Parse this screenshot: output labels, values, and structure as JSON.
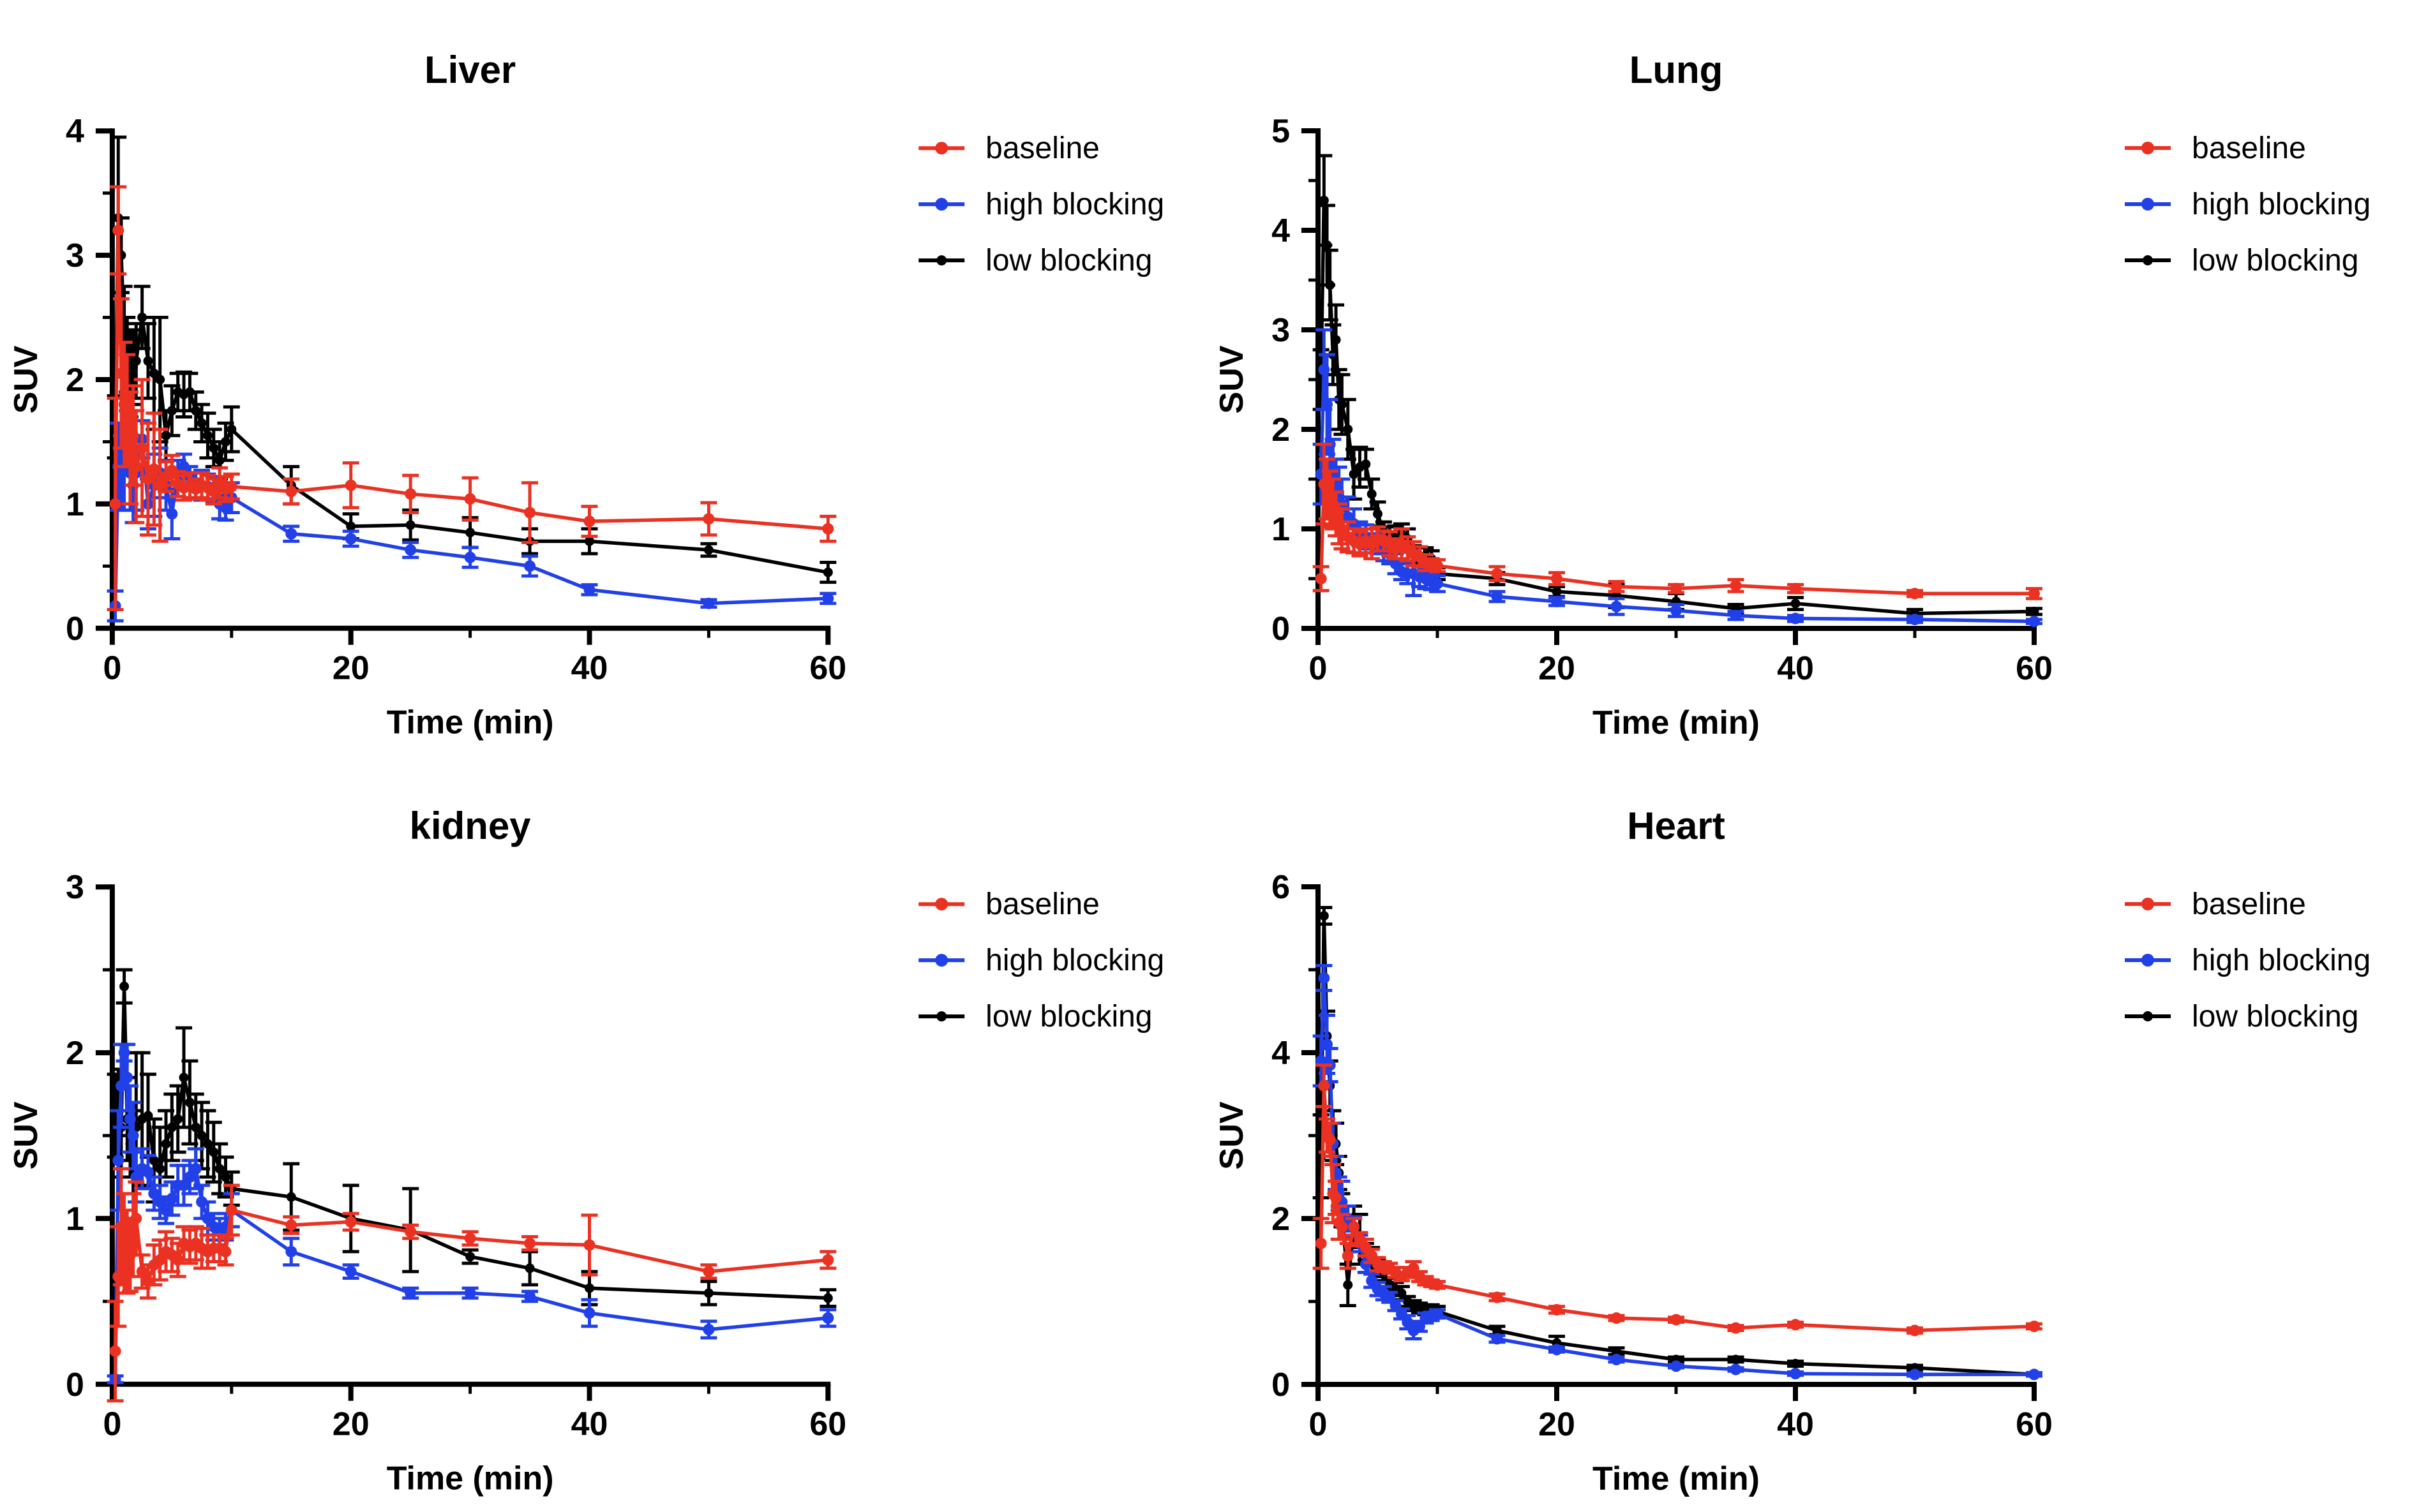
{
  "figure": {
    "background": "#ffffff",
    "xlabel": "Time (min)",
    "ylabel": "SUV",
    "legend_labels": [
      "baseline",
      "high blocking",
      "low blocking"
    ],
    "colors": {
      "baseline": "#EA3122",
      "high_blocking": "#2140E8",
      "low_blocking": "#000000"
    }
  },
  "chart_data": [
    {
      "type": "line",
      "title": "Liver",
      "xlabel": "Time (min)",
      "ylabel": "SUV",
      "xlim": [
        0,
        60
      ],
      "ylim": [
        0,
        4
      ],
      "xticks": [
        0,
        20,
        40,
        60
      ],
      "xminor": [
        10,
        30,
        50
      ],
      "yticks": [
        0,
        1,
        2,
        3,
        4
      ],
      "yminor_step": 0.5,
      "grid": false,
      "legend_position": "right",
      "x": [
        0.25,
        0.5,
        0.75,
        1,
        1.25,
        1.5,
        1.75,
        2,
        2.5,
        3,
        3.5,
        4,
        4.5,
        5,
        5.5,
        6,
        6.5,
        7,
        7.5,
        8,
        8.5,
        9,
        9.5,
        10,
        15,
        20,
        25,
        30,
        35,
        40,
        50,
        60
      ],
      "series": [
        {
          "name": "baseline",
          "color": "#EA3122",
          "values": [
            1.0,
            3.2,
            2.05,
            1.8,
            1.75,
            1.45,
            1.55,
            1.3,
            1.45,
            1.2,
            1.28,
            1.15,
            1.22,
            1.27,
            1.16,
            1.13,
            1.15,
            1.12,
            1.15,
            1.13,
            1.1,
            1.17,
            1.12,
            1.14,
            1.1,
            1.15,
            1.08,
            1.04,
            0.93,
            0.86,
            0.88,
            0.8
          ],
          "errors": [
            0.85,
            0.35,
            0.6,
            0.5,
            0.45,
            0.45,
            0.4,
            0.45,
            0.55,
            0.45,
            0.45,
            0.45,
            0.12,
            0.12,
            0.1,
            0.1,
            0.1,
            0.08,
            0.1,
            0.1,
            0.1,
            0.12,
            0.1,
            0.1,
            0.1,
            0.18,
            0.15,
            0.17,
            0.24,
            0.12,
            0.13,
            0.1
          ]
        },
        {
          "name": "high blocking",
          "color": "#2140E8",
          "values": [
            0.18,
            1.3,
            1.25,
            1.3,
            1.5,
            1.25,
            1.15,
            1.25,
            1.52,
            1.0,
            1.15,
            1.25,
            1.15,
            0.92,
            1.25,
            1.3,
            1.22,
            1.15,
            1.15,
            1.14,
            1.12,
            1.0,
            0.97,
            1.05,
            0.76,
            0.72,
            0.63,
            0.57,
            0.5,
            0.31,
            0.2,
            0.24
          ],
          "errors": [
            0.12,
            0.35,
            0.3,
            0.35,
            0.25,
            0.3,
            0.3,
            0.3,
            0.15,
            0.2,
            0.25,
            0.2,
            0.2,
            0.2,
            0.1,
            0.1,
            0.08,
            0.1,
            0.12,
            0.1,
            0.1,
            0.12,
            0.1,
            0.12,
            0.06,
            0.06,
            0.06,
            0.08,
            0.08,
            0.04,
            0.03,
            0.04
          ]
        },
        {
          "name": "low blocking",
          "color": "#000000",
          "values": [
            1.62,
            3.3,
            3.0,
            2.4,
            2.2,
            2.05,
            2.1,
            2.15,
            2.5,
            2.15,
            2.05,
            2.0,
            1.55,
            1.75,
            1.9,
            1.88,
            1.9,
            1.75,
            1.65,
            1.55,
            1.45,
            1.35,
            1.5,
            1.6,
            1.15,
            0.82,
            0.83,
            0.77,
            0.7,
            0.7,
            0.63,
            0.45
          ],
          "errors": [
            0.25,
            0.65,
            0.3,
            0.35,
            0.3,
            0.35,
            0.3,
            0.3,
            0.25,
            0.3,
            0.45,
            0.5,
            0.2,
            0.2,
            0.15,
            0.18,
            0.15,
            0.15,
            0.15,
            0.18,
            0.15,
            0.15,
            0.15,
            0.18,
            0.15,
            0.1,
            0.12,
            0.12,
            0.1,
            0.1,
            0.05,
            0.08
          ]
        }
      ]
    },
    {
      "type": "line",
      "title": "Lung",
      "xlabel": "Time (min)",
      "ylabel": "SUV",
      "xlim": [
        0,
        60
      ],
      "ylim": [
        0,
        5
      ],
      "xticks": [
        0,
        20,
        40,
        60
      ],
      "xminor": [
        10,
        30,
        50
      ],
      "yticks": [
        0,
        1,
        2,
        3,
        4,
        5
      ],
      "yminor_step": 0.5,
      "grid": false,
      "legend_position": "right",
      "x": [
        0.25,
        0.5,
        0.75,
        1,
        1.25,
        1.5,
        1.75,
        2,
        2.5,
        3,
        3.5,
        4,
        4.5,
        5,
        5.5,
        6,
        6.5,
        7,
        7.5,
        8,
        8.5,
        9,
        9.5,
        10,
        15,
        20,
        25,
        30,
        35,
        40,
        50,
        60
      ],
      "series": [
        {
          "name": "baseline",
          "color": "#EA3122",
          "values": [
            0.5,
            1.45,
            1.4,
            1.3,
            1.25,
            1.15,
            1.05,
            1.0,
            0.92,
            0.88,
            0.85,
            0.88,
            0.85,
            0.9,
            0.88,
            0.85,
            0.8,
            0.85,
            0.8,
            0.75,
            0.72,
            0.66,
            0.64,
            0.63,
            0.55,
            0.5,
            0.42,
            0.4,
            0.43,
            0.4,
            0.35,
            0.35
          ],
          "errors": [
            0.12,
            0.4,
            0.3,
            0.28,
            0.25,
            0.22,
            0.2,
            0.2,
            0.15,
            0.12,
            0.12,
            0.12,
            0.15,
            0.12,
            0.1,
            0.12,
            0.1,
            0.15,
            0.12,
            0.12,
            0.1,
            0.08,
            0.06,
            0.06,
            0.07,
            0.06,
            0.05,
            0.04,
            0.06,
            0.04,
            0.03,
            0.05
          ]
        },
        {
          "name": "high blocking",
          "color": "#2140E8",
          "values": [
            1.55,
            2.6,
            2.25,
            1.85,
            1.55,
            1.4,
            1.32,
            1.25,
            1.12,
            1.05,
            0.95,
            0.92,
            0.9,
            0.85,
            0.8,
            0.75,
            0.65,
            0.57,
            0.55,
            0.55,
            0.52,
            0.5,
            0.47,
            0.45,
            0.32,
            0.27,
            0.22,
            0.18,
            0.13,
            0.1,
            0.09,
            0.07
          ],
          "errors": [
            0.3,
            0.4,
            0.5,
            0.45,
            0.35,
            0.3,
            0.3,
            0.25,
            0.2,
            0.15,
            0.12,
            0.12,
            0.1,
            0.1,
            0.12,
            0.1,
            0.1,
            0.08,
            0.1,
            0.22,
            0.1,
            0.1,
            0.08,
            0.08,
            0.05,
            0.04,
            0.08,
            0.06,
            0.04,
            0.03,
            0.03,
            0.02
          ]
        },
        {
          "name": "low blocking",
          "color": "#000000",
          "values": [
            2.5,
            4.3,
            3.85,
            3.45,
            2.75,
            2.9,
            2.3,
            2.25,
            2.0,
            1.55,
            1.62,
            1.65,
            1.35,
            1.15,
            0.97,
            0.92,
            0.93,
            0.95,
            0.9,
            0.75,
            0.73,
            0.73,
            0.7,
            0.55,
            0.5,
            0.37,
            0.33,
            0.27,
            0.2,
            0.25,
            0.15,
            0.17
          ],
          "errors": [
            0.3,
            0.45,
            0.4,
            0.35,
            0.3,
            0.35,
            0.3,
            0.3,
            0.3,
            0.25,
            0.2,
            0.15,
            0.15,
            0.12,
            0.1,
            0.1,
            0.1,
            0.1,
            0.1,
            0.08,
            0.08,
            0.08,
            0.08,
            0.06,
            0.06,
            0.05,
            0.12,
            0.08,
            0.04,
            0.06,
            0.04,
            0.03
          ]
        }
      ]
    },
    {
      "type": "line",
      "title": "kidney",
      "xlabel": "Time (min)",
      "ylabel": "SUV",
      "xlim": [
        0,
        60
      ],
      "ylim": [
        0,
        3
      ],
      "xticks": [
        0,
        20,
        40,
        60
      ],
      "xminor": [
        10,
        30,
        50
      ],
      "yticks": [
        0,
        1,
        2,
        3
      ],
      "yminor_step": 0.5,
      "grid": false,
      "legend_position": "right",
      "x": [
        0.25,
        0.5,
        0.75,
        1,
        1.25,
        1.5,
        1.75,
        2,
        2.5,
        3,
        3.5,
        4,
        4.5,
        5,
        5.5,
        6,
        6.5,
        7,
        7.5,
        8,
        8.5,
        9,
        9.5,
        10,
        15,
        20,
        25,
        30,
        35,
        40,
        50,
        60
      ],
      "series": [
        {
          "name": "baseline",
          "color": "#EA3122",
          "values": [
            0.2,
            0.65,
            0.95,
            0.85,
            0.8,
            0.78,
            0.9,
            1.0,
            0.68,
            0.62,
            0.72,
            0.75,
            0.8,
            0.78,
            0.75,
            0.85,
            0.83,
            0.85,
            0.82,
            0.8,
            0.82,
            0.82,
            0.8,
            1.05,
            0.96,
            0.98,
            0.92,
            0.88,
            0.85,
            0.84,
            0.68,
            0.75
          ],
          "errors": [
            0.3,
            0.3,
            0.35,
            0.3,
            0.25,
            0.22,
            0.25,
            0.22,
            0.1,
            0.1,
            0.12,
            0.12,
            0.12,
            0.1,
            0.1,
            0.1,
            0.1,
            0.1,
            0.12,
            0.1,
            0.08,
            0.08,
            0.08,
            0.15,
            0.05,
            0.05,
            0.04,
            0.04,
            0.04,
            0.18,
            0.04,
            0.05
          ]
        },
        {
          "name": "high blocking",
          "color": "#2140E8",
          "values": [
            0.03,
            1.35,
            1.8,
            2.0,
            1.85,
            1.6,
            1.5,
            1.25,
            1.3,
            1.28,
            1.15,
            1.1,
            1.05,
            1.12,
            1.2,
            1.2,
            1.25,
            1.3,
            1.1,
            1.0,
            0.95,
            0.92,
            0.95,
            1.05,
            0.8,
            0.68,
            0.55,
            0.55,
            0.53,
            0.43,
            0.33,
            0.4
          ],
          "errors": [
            0.02,
            0.3,
            0.25,
            0.05,
            0.2,
            0.2,
            0.2,
            0.15,
            0.12,
            0.1,
            0.1,
            0.1,
            0.08,
            0.1,
            0.12,
            0.12,
            0.1,
            0.12,
            0.1,
            0.1,
            0.08,
            0.08,
            0.08,
            0.1,
            0.08,
            0.04,
            0.03,
            0.03,
            0.03,
            0.08,
            0.05,
            0.05
          ]
        },
        {
          "name": "low blocking",
          "color": "#000000",
          "values": [
            1.62,
            1.7,
            1.55,
            2.4,
            1.6,
            1.45,
            1.4,
            1.55,
            1.6,
            1.62,
            1.35,
            1.3,
            1.45,
            1.55,
            1.6,
            1.85,
            1.7,
            1.55,
            1.5,
            1.45,
            1.4,
            1.3,
            1.25,
            1.18,
            1.13,
            1.0,
            0.93,
            0.77,
            0.7,
            0.58,
            0.55,
            0.52
          ],
          "errors": [
            0.25,
            0.2,
            0.3,
            0.1,
            0.25,
            0.2,
            0.25,
            0.45,
            0.4,
            0.25,
            0.25,
            0.25,
            0.2,
            0.2,
            0.2,
            0.3,
            0.25,
            0.2,
            0.2,
            0.2,
            0.18,
            0.15,
            0.12,
            0.1,
            0.2,
            0.2,
            0.25,
            0.04,
            0.1,
            0.1,
            0.07,
            0.05
          ]
        }
      ]
    },
    {
      "type": "line",
      "title": "Heart",
      "xlabel": "Time (min)",
      "ylabel": "SUV",
      "xlim": [
        0,
        60
      ],
      "ylim": [
        0,
        6
      ],
      "xticks": [
        0,
        20,
        40,
        60
      ],
      "xminor": [
        10,
        30,
        50
      ],
      "yticks": [
        0,
        2,
        4,
        6
      ],
      "yminor_step": 1,
      "grid": false,
      "legend_position": "right",
      "x": [
        0.25,
        0.5,
        0.75,
        1,
        1.25,
        1.5,
        1.75,
        2,
        2.5,
        3,
        3.5,
        4,
        4.5,
        5,
        5.5,
        6,
        6.5,
        7,
        7.5,
        8,
        8.5,
        9,
        9.5,
        10,
        15,
        20,
        25,
        30,
        35,
        40,
        50,
        60
      ],
      "series": [
        {
          "name": "baseline",
          "color": "#EA3122",
          "values": [
            1.7,
            3.6,
            3.0,
            2.95,
            2.3,
            2.25,
            1.95,
            1.9,
            1.55,
            1.9,
            1.75,
            1.65,
            1.55,
            1.45,
            1.42,
            1.4,
            1.35,
            1.3,
            1.35,
            1.4,
            1.3,
            1.25,
            1.22,
            1.2,
            1.05,
            0.9,
            0.8,
            0.78,
            0.68,
            0.72,
            0.65,
            0.7
          ],
          "errors": [
            0.3,
            0.25,
            0.2,
            0.2,
            0.35,
            0.2,
            0.2,
            0.15,
            0.15,
            0.1,
            0.08,
            0.1,
            0.08,
            0.08,
            0.06,
            0.06,
            0.06,
            0.05,
            0.06,
            0.08,
            0.06,
            0.05,
            0.04,
            0.04,
            0.04,
            0.04,
            0.03,
            0.03,
            0.03,
            0.03,
            0.03,
            0.03
          ]
        },
        {
          "name": "high blocking",
          "color": "#2140E8",
          "values": [
            3.9,
            4.9,
            4.1,
            3.85,
            2.9,
            2.55,
            2.3,
            2.2,
            2.0,
            1.9,
            1.7,
            1.45,
            1.25,
            1.15,
            1.1,
            1.05,
            0.95,
            0.85,
            0.75,
            0.65,
            0.7,
            0.8,
            0.82,
            0.85,
            0.55,
            0.42,
            0.3,
            0.22,
            0.18,
            0.13,
            0.12,
            0.12
          ],
          "errors": [
            0.3,
            0.15,
            0.35,
            0.2,
            0.25,
            0.2,
            0.2,
            0.25,
            0.15,
            0.12,
            0.1,
            0.1,
            0.08,
            0.08,
            0.08,
            0.06,
            0.06,
            0.06,
            0.08,
            0.1,
            0.06,
            0.06,
            0.05,
            0.05,
            0.04,
            0.03,
            0.03,
            0.02,
            0.02,
            0.02,
            0.02,
            0.02
          ]
        },
        {
          "name": "low blocking",
          "color": "#000000",
          "values": [
            2.75,
            5.65,
            4.2,
            3.6,
            3.0,
            2.9,
            2.55,
            2.1,
            1.2,
            1.9,
            1.75,
            1.6,
            1.5,
            1.4,
            1.35,
            1.2,
            1.15,
            1.1,
            1.0,
            0.95,
            0.92,
            0.9,
            0.9,
            0.88,
            0.65,
            0.5,
            0.4,
            0.3,
            0.3,
            0.25,
            0.2,
            0.12
          ],
          "errors": [
            0.5,
            0.1,
            0.3,
            0.3,
            0.3,
            0.25,
            0.2,
            0.2,
            0.25,
            0.25,
            0.3,
            0.1,
            0.15,
            0.1,
            0.1,
            0.08,
            0.08,
            0.08,
            0.06,
            0.06,
            0.06,
            0.06,
            0.06,
            0.06,
            0.05,
            0.08,
            0.04,
            0.03,
            0.03,
            0.03,
            0.03,
            0.02
          ]
        }
      ]
    }
  ]
}
